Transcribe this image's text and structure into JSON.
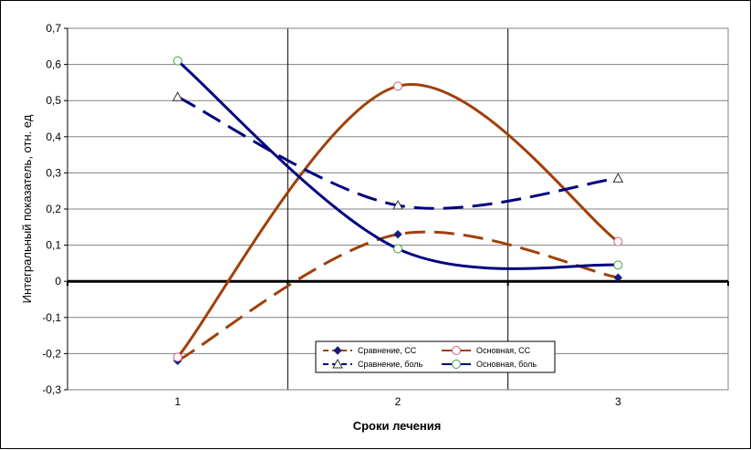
{
  "chart_data": {
    "type": "line",
    "title": "",
    "xlabel": "Сроки лечения",
    "ylabel": "Интегральный показатель, отн. ед",
    "x": [
      1,
      2,
      3
    ],
    "x_tick_labels": [
      "1",
      "2",
      "3"
    ],
    "xlim": [
      0.5,
      3.5
    ],
    "ylim": [
      -0.3,
      0.7
    ],
    "y_ticks": [
      -0.3,
      -0.2,
      -0.1,
      0,
      0.1,
      0.2,
      0.3,
      0.4,
      0.5,
      0.6,
      0.7
    ],
    "y_tick_labels": [
      "-0,3",
      "-0,2",
      "-0,1",
      "0",
      "0,1",
      "0,2",
      "0,3",
      "0,4",
      "0,5",
      "0,6",
      "0,7"
    ],
    "grid": "horizontal gridlines and vertical category separators",
    "legend_position": "bottom-center inside plot",
    "series": [
      {
        "name": "Сравнение, СС",
        "values": [
          -0.22,
          0.13,
          0.01
        ],
        "color": "#A0400A",
        "line_style": "dashed",
        "marker": "diamond",
        "marker_color": "#1A1A7A"
      },
      {
        "name": "Основная, СС",
        "values": [
          -0.21,
          0.54,
          0.11
        ],
        "color": "#A0400A",
        "line_style": "solid",
        "marker": "circle",
        "marker_color": "#C06080"
      },
      {
        "name": "Сравнение, боль",
        "values": [
          0.51,
          0.21,
          0.285
        ],
        "color": "#000080",
        "line_style": "dashed",
        "marker": "triangle",
        "marker_color": "#333333"
      },
      {
        "name": "Основная, боль",
        "values": [
          0.61,
          0.09,
          0.045
        ],
        "color": "#000080",
        "line_style": "solid",
        "marker": "circle",
        "marker_color": "#40A040"
      }
    ]
  }
}
